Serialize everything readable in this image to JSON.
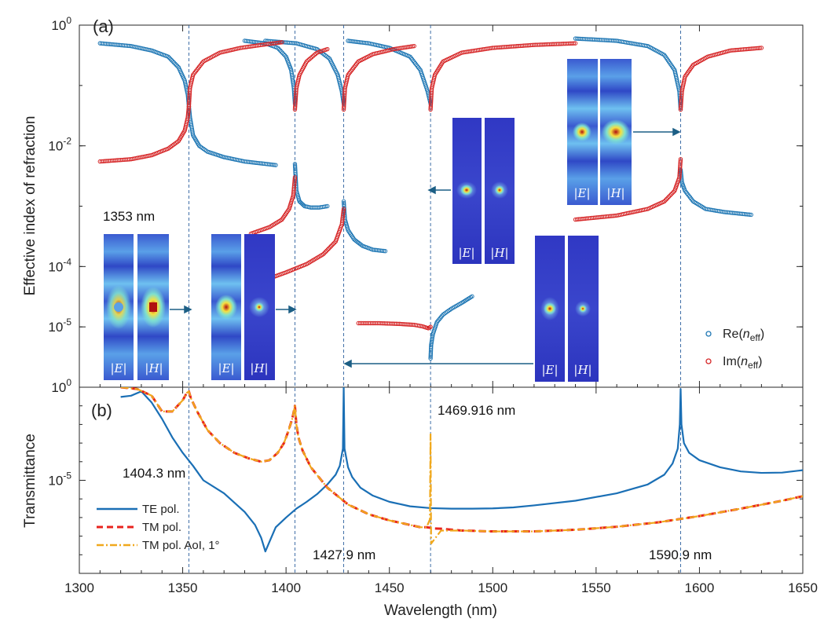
{
  "chart_data": [
    {
      "type": "scatter",
      "panel": "(a)",
      "xlabel": "Wavelength (nm)",
      "ylabel": "Effective index of refraction",
      "yscale": "log",
      "xlim": [
        1300,
        1650
      ],
      "ylim": [
        1e-06,
        1
      ],
      "xticks": [
        "1300",
        "1350",
        "1400",
        "1450",
        "1500",
        "1550",
        "1600",
        "1650"
      ],
      "yticks": [
        {
          "base": "10",
          "exp": "0",
          "value": 1
        },
        {
          "base": "10",
          "exp": "-2",
          "value": 0.01
        },
        {
          "base": "10",
          "exp": "-4",
          "value": 0.0001
        },
        {
          "base": "10",
          "exp": "-5",
          "value": 1e-05
        }
      ],
      "legend": [
        "Re(n_eff)",
        "Im(n_eff)"
      ],
      "legend_text": {
        "re_pre": "Re(",
        "im_pre": "Im(",
        "n": "n",
        "sub": "eff",
        "post": ")"
      },
      "legend_position": "bottom-right",
      "resonances_nm": [
        1353,
        1404.3,
        1427.9,
        1469.916,
        1590.9
      ],
      "series": [
        {
          "name": "Re(n_eff)",
          "color": "#1f77b4",
          "branches": [
            {
              "x": [
                1310,
                1325,
                1335,
                1343,
                1348,
                1351,
                1352.5,
                1353
              ],
              "y": [
                0.5,
                0.45,
                0.38,
                0.3,
                0.2,
                0.12,
                0.07,
                0.045
              ]
            },
            {
              "x": [
                1353,
                1353.5,
                1355,
                1358,
                1362,
                1370,
                1380,
                1395
              ],
              "y": [
                0.045,
                0.03,
                0.015,
                0.01,
                0.008,
                0.0065,
                0.0055,
                0.0048
              ]
            },
            {
              "x": [
                1380,
                1390,
                1396,
                1400,
                1402.5,
                1403.8,
                1404.3
              ],
              "y": [
                0.55,
                0.5,
                0.42,
                0.3,
                0.18,
                0.09,
                0.05
              ]
            },
            {
              "x": [
                1404.3,
                1405,
                1406.5,
                1409,
                1412,
                1416,
                1420
              ],
              "y": [
                0.005,
                0.0018,
                0.0012,
                0.001,
                0.00095,
                0.00095,
                0.001
              ]
            },
            {
              "x": [
                1390,
                1405,
                1415,
                1421,
                1425,
                1427,
                1427.9
              ],
              "y": [
                0.55,
                0.5,
                0.4,
                0.28,
                0.15,
                0.08,
                0.05
              ]
            },
            {
              "x": [
                1427.9,
                1428.5,
                1430,
                1433,
                1437,
                1442,
                1448
              ],
              "y": [
                0.0012,
                0.0006,
                0.0004,
                0.00028,
                0.00022,
                0.00019,
                0.00018
              ]
            },
            {
              "x": [
                1430,
                1440,
                1450,
                1460,
                1465,
                1468.5,
                1469.916
              ],
              "y": [
                0.55,
                0.5,
                0.42,
                0.3,
                0.18,
                0.08,
                0.05
              ]
            },
            {
              "x": [
                1469.916,
                1470.2,
                1471,
                1473,
                1476,
                1480,
                1485,
                1490
              ],
              "y": [
                3e-06,
                5e-06,
                7.5e-06,
                1.2e-05,
                1.6e-05,
                2e-05,
                2.5e-05,
                3.2e-05
              ]
            },
            {
              "x": [
                1540,
                1560,
                1575,
                1583,
                1588,
                1590.3,
                1590.9
              ],
              "y": [
                0.6,
                0.55,
                0.45,
                0.32,
                0.18,
                0.08,
                0.04
              ]
            },
            {
              "x": [
                1590.9,
                1591.5,
                1593,
                1597,
                1603,
                1612,
                1625
              ],
              "y": [
                0.004,
                0.0025,
                0.0018,
                0.0012,
                0.0009,
                0.0008,
                0.00072
              ]
            }
          ]
        },
        {
          "name": "Im(n_eff)",
          "color": "#d62728",
          "branches": [
            {
              "x": [
                1310,
                1325,
                1335,
                1343,
                1348,
                1351,
                1352.5,
                1353
              ],
              "y": [
                0.0055,
                0.006,
                0.007,
                0.009,
                0.012,
                0.018,
                0.03,
                0.045
              ]
            },
            {
              "x": [
                1353,
                1353.5,
                1355,
                1360,
                1368,
                1378,
                1390,
                1398
              ],
              "y": [
                0.045,
                0.09,
                0.15,
                0.25,
                0.35,
                0.42,
                0.48,
                0.52
              ]
            },
            {
              "x": [
                1383,
                1392,
                1398,
                1401.5,
                1403.5,
                1404.3
              ],
              "y": [
                0.00035,
                0.00045,
                0.0006,
                0.0009,
                0.0015,
                0.003
              ]
            },
            {
              "x": [
                1404.3,
                1405,
                1406.5,
                1410,
                1415,
                1420
              ],
              "y": [
                0.04,
                0.09,
                0.15,
                0.25,
                0.35,
                0.4
              ]
            },
            {
              "x": [
                1390,
                1400,
                1410,
                1418,
                1424,
                1427,
                1427.9
              ],
              "y": [
                6e-05,
                8e-05,
                0.00011,
                0.00016,
                0.00026,
                0.0005,
                0.0009
              ]
            },
            {
              "x": [
                1427.9,
                1428.5,
                1430,
                1435,
                1442,
                1452,
                1462
              ],
              "y": [
                0.04,
                0.09,
                0.15,
                0.25,
                0.33,
                0.4,
                0.45
              ]
            },
            {
              "x": [
                1435,
                1445,
                1455,
                1462,
                1466,
                1468.8,
                1469.916
              ],
              "y": [
                1.15e-05,
                1.15e-05,
                1.12e-05,
                1.08e-05,
                1.02e-05,
                9.5e-06,
                1e-05
              ]
            },
            {
              "x": [
                1469.916,
                1470.5,
                1472,
                1476,
                1485,
                1500,
                1520,
                1540
              ],
              "y": [
                0.04,
                0.09,
                0.15,
                0.25,
                0.35,
                0.42,
                0.47,
                0.5
              ]
            },
            {
              "x": [
                1590.9,
                1591.5,
                1593,
                1597,
                1604,
                1615,
                1630
              ],
              "y": [
                0.04,
                0.08,
                0.14,
                0.22,
                0.3,
                0.38,
                0.42
              ]
            },
            {
              "x": [
                1540,
                1560,
                1575,
                1583,
                1588,
                1590.3,
                1590.9
              ],
              "y": [
                0.0006,
                0.0007,
                0.0009,
                0.0012,
                0.0018,
                0.003,
                0.006
              ]
            }
          ]
        }
      ],
      "annotations": {
        "mode_label": "1353 nm",
        "field_E": "|E|",
        "field_H": "|H|"
      }
    },
    {
      "type": "line",
      "panel": "(b)",
      "xlabel": "Wavelength (nm)",
      "ylabel": "Transmittance",
      "yscale": "log",
      "xlim": [
        1300,
        1650
      ],
      "ylim": [
        1e-10,
        1
      ],
      "yticks": [
        {
          "base": "10",
          "exp": "0",
          "value": 1
        },
        {
          "base": "10",
          "exp": "-5",
          "value": 1e-05
        }
      ],
      "legend": [
        "TE pol.",
        "TM pol.",
        "TM pol. AoI, 1°"
      ],
      "legend_position": "bottom-left",
      "annotations": {
        "a1": "1404.3 nm",
        "a2": "1427.9 nm",
        "a3": "1469.916 nm",
        "a4": "1590.9 nm"
      },
      "series": [
        {
          "name": "TE pol.",
          "color": "#1a6fb5",
          "style": "solid",
          "x": [
            1320,
            1325,
            1330,
            1335,
            1340,
            1345,
            1350,
            1355,
            1360,
            1370,
            1380,
            1385,
            1388,
            1390,
            1392,
            1395,
            1400,
            1405,
            1410,
            1415,
            1420,
            1424,
            1426,
            1427.5,
            1427.9,
            1428.3,
            1430,
            1432,
            1436,
            1442,
            1450,
            1460,
            1470,
            1480,
            1490,
            1500,
            1510,
            1520,
            1540,
            1560,
            1575,
            1583,
            1587,
            1589.5,
            1590.5,
            1590.9,
            1591.3,
            1592.5,
            1595,
            1600,
            1610,
            1620,
            1630,
            1640,
            1650
          ],
          "y": [
            0.3,
            0.35,
            0.6,
            0.15,
            0.02,
            0.002,
            0.0003,
            6e-05,
            1e-05,
            2e-06,
            2e-07,
            4e-08,
            8e-09,
            1.5e-09,
            5e-09,
            3e-08,
            1e-07,
            3e-07,
            7e-07,
            1.8e-06,
            6e-06,
            2e-05,
            6e-05,
            0.0005,
            1,
            0.0005,
            5e-05,
            1.5e-05,
            4e-06,
            1.5e-06,
            7e-07,
            4e-07,
            3.2e-07,
            3e-07,
            3e-07,
            3.1e-07,
            3.5e-07,
            4.5e-07,
            8e-07,
            2e-06,
            6e-06,
            2e-05,
            8e-05,
            0.0005,
            0.01,
            0.8,
            0.01,
            0.001,
            0.0003,
            0.00012,
            5e-05,
            3e-05,
            2.5e-05,
            2.6e-05,
            3.5e-05
          ]
        },
        {
          "name": "TM pol.",
          "color": "#e8231e",
          "style": "dashed",
          "x": [
            1320,
            1328,
            1335,
            1340,
            1345,
            1350,
            1352,
            1353,
            1354,
            1357,
            1362,
            1368,
            1375,
            1382,
            1388,
            1392,
            1396,
            1399,
            1401,
            1403,
            1404.3,
            1405,
            1406,
            1408,
            1412,
            1420,
            1430,
            1440,
            1450,
            1460,
            1465,
            1468,
            1469.9,
            1470.5,
            1475,
            1485,
            1500,
            1520,
            1540,
            1560,
            1580,
            1600,
            1620,
            1640,
            1650
          ],
          "y": [
            1,
            0.8,
            0.35,
            0.05,
            0.05,
            0.2,
            0.5,
            0.6,
            0.25,
            0.05,
            0.005,
            0.001,
            0.0003,
            0.00015,
            0.0001,
            0.00012,
            0.0003,
            0.001,
            0.004,
            0.02,
            0.1,
            0.01,
            0.002,
            0.0004,
            5e-05,
            4e-06,
            5e-07,
            1.5e-07,
            7e-08,
            4e-08,
            3e-08,
            3e-08,
            2.8e-08,
            2.6e-08,
            2.5e-08,
            2e-08,
            1.8e-08,
            1.8e-08,
            2.2e-08,
            3.2e-08,
            5.5e-08,
            1.2e-07,
            3e-07,
            8e-07,
            1.4e-06
          ]
        },
        {
          "name": "TM pol. AoI, 1°",
          "color": "#f0a81c",
          "style": "dashdot",
          "x": [
            1320,
            1328,
            1335,
            1340,
            1345,
            1350,
            1352,
            1353,
            1354,
            1357,
            1362,
            1368,
            1375,
            1382,
            1388,
            1392,
            1396,
            1399,
            1401,
            1403,
            1404.3,
            1405,
            1406,
            1408,
            1412,
            1420,
            1430,
            1440,
            1450,
            1460,
            1465,
            1468,
            1469.6,
            1469.916,
            1470.2,
            1475,
            1485,
            1500,
            1520,
            1540,
            1560,
            1580,
            1600,
            1620,
            1640,
            1650
          ],
          "y": [
            1,
            0.8,
            0.35,
            0.05,
            0.05,
            0.2,
            0.5,
            0.6,
            0.25,
            0.05,
            0.005,
            0.001,
            0.0003,
            0.00015,
            0.0001,
            0.00012,
            0.0003,
            0.001,
            0.004,
            0.02,
            0.1,
            0.01,
            0.002,
            0.0004,
            5e-05,
            4e-06,
            5e-07,
            1.5e-07,
            7e-08,
            4e-08,
            3e-08,
            3e-08,
            8e-08,
            0.003,
            4e-09,
            2e-08,
            2e-08,
            1.8e-08,
            1.8e-08,
            2.2e-08,
            3.2e-08,
            5.5e-08,
            1.2e-07,
            3e-07,
            8e-07,
            1.4e-06
          ]
        }
      ]
    }
  ]
}
